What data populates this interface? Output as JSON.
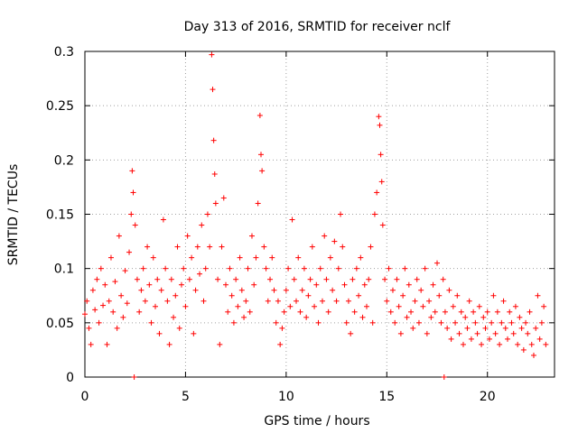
{
  "chart_data": {
    "type": "scatter",
    "title": "Day 313 of 2016, SRMTID for receiver nclf",
    "xlabel": "GPS time / hours",
    "ylabel": "SRMTID / TECUs",
    "xlim": [
      0,
      23.333
    ],
    "ylim": [
      0,
      0.3
    ],
    "xticks": [
      0,
      5,
      10,
      15,
      20
    ],
    "xtick_labels": [
      "0",
      "5",
      "10",
      "15",
      "20"
    ],
    "yticks": [
      0,
      0.05,
      0.1,
      0.15,
      0.2,
      0.25,
      0.3
    ],
    "ytick_labels": [
      "0",
      "0.05",
      "0.1",
      "0.15",
      "0.2",
      "0.25",
      "0.3"
    ],
    "grid": true,
    "marker": "plus",
    "color": "#ff0000",
    "series": [
      {
        "name": "SRMTID",
        "points": [
          [
            0.0,
            0.058
          ],
          [
            0.1,
            0.07
          ],
          [
            0.2,
            0.045
          ],
          [
            0.3,
            0.03
          ],
          [
            0.4,
            0.08
          ],
          [
            0.5,
            0.062
          ],
          [
            0.6,
            0.09
          ],
          [
            0.7,
            0.05
          ],
          [
            0.8,
            0.1
          ],
          [
            0.9,
            0.066
          ],
          [
            1.0,
            0.085
          ],
          [
            1.1,
            0.03
          ],
          [
            1.2,
            0.07
          ],
          [
            1.3,
            0.11
          ],
          [
            1.4,
            0.06
          ],
          [
            1.5,
            0.088
          ],
          [
            1.6,
            0.045
          ],
          [
            1.7,
            0.13
          ],
          [
            1.8,
            0.075
          ],
          [
            1.9,
            0.055
          ],
          [
            2.0,
            0.098
          ],
          [
            2.1,
            0.068
          ],
          [
            2.2,
            0.115
          ],
          [
            2.3,
            0.15
          ],
          [
            2.35,
            0.19
          ],
          [
            2.4,
            0.17
          ],
          [
            2.45,
            0.0
          ],
          [
            2.5,
            0.14
          ],
          [
            2.6,
            0.09
          ],
          [
            2.7,
            0.06
          ],
          [
            2.8,
            0.08
          ],
          [
            2.9,
            0.1
          ],
          [
            3.0,
            0.07
          ],
          [
            3.1,
            0.12
          ],
          [
            3.2,
            0.085
          ],
          [
            3.3,
            0.05
          ],
          [
            3.4,
            0.11
          ],
          [
            3.5,
            0.065
          ],
          [
            3.6,
            0.09
          ],
          [
            3.7,
            0.04
          ],
          [
            3.8,
            0.08
          ],
          [
            3.9,
            0.145
          ],
          [
            4.0,
            0.1
          ],
          [
            4.1,
            0.07
          ],
          [
            4.2,
            0.03
          ],
          [
            4.3,
            0.09
          ],
          [
            4.4,
            0.055
          ],
          [
            4.5,
            0.075
          ],
          [
            4.6,
            0.12
          ],
          [
            4.7,
            0.045
          ],
          [
            4.8,
            0.085
          ],
          [
            4.9,
            0.1
          ],
          [
            5.0,
            0.065
          ],
          [
            5.1,
            0.13
          ],
          [
            5.2,
            0.09
          ],
          [
            5.3,
            0.11
          ],
          [
            5.4,
            0.04
          ],
          [
            5.5,
            0.08
          ],
          [
            5.6,
            0.12
          ],
          [
            5.7,
            0.095
          ],
          [
            5.8,
            0.14
          ],
          [
            5.9,
            0.07
          ],
          [
            6.0,
            0.1
          ],
          [
            6.1,
            0.15
          ],
          [
            6.2,
            0.12
          ],
          [
            6.3,
            0.297
          ],
          [
            6.35,
            0.265
          ],
          [
            6.4,
            0.218
          ],
          [
            6.45,
            0.187
          ],
          [
            6.5,
            0.16
          ],
          [
            6.6,
            0.09
          ],
          [
            6.7,
            0.03
          ],
          [
            6.8,
            0.12
          ],
          [
            6.9,
            0.165
          ],
          [
            7.0,
            0.085
          ],
          [
            7.1,
            0.06
          ],
          [
            7.2,
            0.1
          ],
          [
            7.3,
            0.075
          ],
          [
            7.4,
            0.05
          ],
          [
            7.5,
            0.09
          ],
          [
            7.6,
            0.065
          ],
          [
            7.7,
            0.11
          ],
          [
            7.8,
            0.08
          ],
          [
            7.9,
            0.055
          ],
          [
            8.0,
            0.07
          ],
          [
            8.1,
            0.1
          ],
          [
            8.2,
            0.06
          ],
          [
            8.3,
            0.13
          ],
          [
            8.4,
            0.085
          ],
          [
            8.5,
            0.11
          ],
          [
            8.6,
            0.16
          ],
          [
            8.7,
            0.241
          ],
          [
            8.75,
            0.205
          ],
          [
            8.8,
            0.19
          ],
          [
            8.9,
            0.12
          ],
          [
            9.0,
            0.1
          ],
          [
            9.1,
            0.07
          ],
          [
            9.2,
            0.09
          ],
          [
            9.3,
            0.11
          ],
          [
            9.4,
            0.08
          ],
          [
            9.5,
            0.05
          ],
          [
            9.6,
            0.07
          ],
          [
            9.7,
            0.03
          ],
          [
            9.8,
            0.045
          ],
          [
            9.9,
            0.06
          ],
          [
            10.0,
            0.08
          ],
          [
            10.1,
            0.1
          ],
          [
            10.2,
            0.065
          ],
          [
            10.3,
            0.145
          ],
          [
            10.4,
            0.09
          ],
          [
            10.5,
            0.07
          ],
          [
            10.6,
            0.11
          ],
          [
            10.7,
            0.06
          ],
          [
            10.8,
            0.08
          ],
          [
            10.9,
            0.1
          ],
          [
            11.0,
            0.055
          ],
          [
            11.1,
            0.075
          ],
          [
            11.2,
            0.09
          ],
          [
            11.3,
            0.12
          ],
          [
            11.4,
            0.065
          ],
          [
            11.5,
            0.085
          ],
          [
            11.6,
            0.05
          ],
          [
            11.7,
            0.1
          ],
          [
            11.8,
            0.07
          ],
          [
            11.9,
            0.13
          ],
          [
            12.0,
            0.09
          ],
          [
            12.1,
            0.06
          ],
          [
            12.2,
            0.11
          ],
          [
            12.3,
            0.08
          ],
          [
            12.4,
            0.125
          ],
          [
            12.5,
            0.07
          ],
          [
            12.6,
            0.1
          ],
          [
            12.7,
            0.15
          ],
          [
            12.8,
            0.12
          ],
          [
            12.9,
            0.085
          ],
          [
            13.0,
            0.05
          ],
          [
            13.1,
            0.07
          ],
          [
            13.2,
            0.04
          ],
          [
            13.3,
            0.09
          ],
          [
            13.4,
            0.06
          ],
          [
            13.5,
            0.1
          ],
          [
            13.6,
            0.075
          ],
          [
            13.7,
            0.11
          ],
          [
            13.8,
            0.055
          ],
          [
            13.9,
            0.085
          ],
          [
            14.0,
            0.065
          ],
          [
            14.1,
            0.09
          ],
          [
            14.2,
            0.12
          ],
          [
            14.3,
            0.05
          ],
          [
            14.4,
            0.15
          ],
          [
            14.5,
            0.17
          ],
          [
            14.6,
            0.24
          ],
          [
            14.65,
            0.232
          ],
          [
            14.7,
            0.205
          ],
          [
            14.75,
            0.18
          ],
          [
            14.8,
            0.14
          ],
          [
            14.9,
            0.09
          ],
          [
            15.0,
            0.07
          ],
          [
            15.1,
            0.1
          ],
          [
            15.2,
            0.06
          ],
          [
            15.3,
            0.08
          ],
          [
            15.4,
            0.05
          ],
          [
            15.5,
            0.09
          ],
          [
            15.6,
            0.065
          ],
          [
            15.7,
            0.04
          ],
          [
            15.8,
            0.075
          ],
          [
            15.9,
            0.1
          ],
          [
            16.0,
            0.055
          ],
          [
            16.1,
            0.085
          ],
          [
            16.2,
            0.06
          ],
          [
            16.3,
            0.045
          ],
          [
            16.4,
            0.07
          ],
          [
            16.5,
            0.09
          ],
          [
            16.6,
            0.05
          ],
          [
            16.7,
            0.08
          ],
          [
            16.8,
            0.065
          ],
          [
            16.9,
            0.1
          ],
          [
            17.0,
            0.04
          ],
          [
            17.1,
            0.07
          ],
          [
            17.2,
            0.055
          ],
          [
            17.3,
            0.085
          ],
          [
            17.4,
            0.06
          ],
          [
            17.5,
            0.105
          ],
          [
            17.6,
            0.075
          ],
          [
            17.7,
            0.05
          ],
          [
            17.8,
            0.09
          ],
          [
            17.85,
            0.0
          ],
          [
            17.9,
            0.06
          ],
          [
            18.0,
            0.045
          ],
          [
            18.1,
            0.08
          ],
          [
            18.2,
            0.035
          ],
          [
            18.3,
            0.065
          ],
          [
            18.4,
            0.05
          ],
          [
            18.5,
            0.075
          ],
          [
            18.6,
            0.04
          ],
          [
            18.7,
            0.06
          ],
          [
            18.8,
            0.03
          ],
          [
            18.9,
            0.055
          ],
          [
            19.0,
            0.045
          ],
          [
            19.1,
            0.07
          ],
          [
            19.2,
            0.035
          ],
          [
            19.3,
            0.06
          ],
          [
            19.4,
            0.05
          ],
          [
            19.5,
            0.04
          ],
          [
            19.6,
            0.065
          ],
          [
            19.7,
            0.03
          ],
          [
            19.8,
            0.055
          ],
          [
            19.9,
            0.045
          ],
          [
            20.0,
            0.06
          ],
          [
            20.1,
            0.035
          ],
          [
            20.2,
            0.05
          ],
          [
            20.3,
            0.075
          ],
          [
            20.4,
            0.04
          ],
          [
            20.5,
            0.06
          ],
          [
            20.6,
            0.03
          ],
          [
            20.7,
            0.05
          ],
          [
            20.8,
            0.07
          ],
          [
            20.9,
            0.045
          ],
          [
            21.0,
            0.035
          ],
          [
            21.1,
            0.06
          ],
          [
            21.2,
            0.05
          ],
          [
            21.3,
            0.04
          ],
          [
            21.4,
            0.065
          ],
          [
            21.5,
            0.03
          ],
          [
            21.6,
            0.055
          ],
          [
            21.7,
            0.045
          ],
          [
            21.8,
            0.025
          ],
          [
            21.9,
            0.05
          ],
          [
            22.0,
            0.04
          ],
          [
            22.1,
            0.06
          ],
          [
            22.2,
            0.03
          ],
          [
            22.3,
            0.02
          ],
          [
            22.4,
            0.045
          ],
          [
            22.5,
            0.075
          ],
          [
            22.6,
            0.035
          ],
          [
            22.7,
            0.05
          ],
          [
            22.8,
            0.065
          ],
          [
            22.9,
            0.03
          ]
        ]
      }
    ]
  }
}
